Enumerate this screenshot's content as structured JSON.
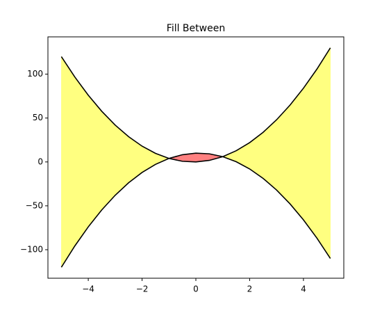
{
  "chart_data": {
    "type": "fill_between",
    "title": "Fill Between",
    "x": [
      -5,
      -4.5,
      -4,
      -3.5,
      -3,
      -2.5,
      -2,
      -1.5,
      -1,
      -0.5,
      0,
      0.5,
      1,
      1.5,
      2,
      2.5,
      3,
      3.5,
      4,
      4.5,
      5
    ],
    "series": [
      {
        "color": "#000000",
        "values": [
          120,
          96.75,
          76,
          57.75,
          42,
          28.75,
          18,
          9.75,
          4,
          0.75,
          0,
          1.75,
          6,
          12.75,
          22,
          33.75,
          48,
          64.75,
          84,
          105.75,
          130
        ]
      },
      {
        "color": "#000000",
        "values": [
          -120,
          -95.75,
          -74,
          -54.75,
          -38,
          -23.75,
          -12,
          -2.75,
          4,
          8.25,
          10,
          9.25,
          6,
          0.25,
          -8,
          -18.75,
          -32,
          -47.75,
          -66,
          -86.75,
          -110
        ]
      }
    ],
    "fill_colors": {
      "first_above": "#ffff80",
      "second_above": "#ff8080"
    },
    "xlim": [
      -5.5,
      5.5
    ],
    "ylim": [
      -132.5,
      142.5
    ],
    "xticks": [
      {
        "value": -4,
        "label": "−4"
      },
      {
        "value": -2,
        "label": "−2"
      },
      0,
      2,
      4
    ],
    "yticks": [
      {
        "value": -100,
        "label": "−100"
      },
      {
        "value": -50,
        "label": "−50"
      },
      0,
      50,
      100
    ]
  }
}
